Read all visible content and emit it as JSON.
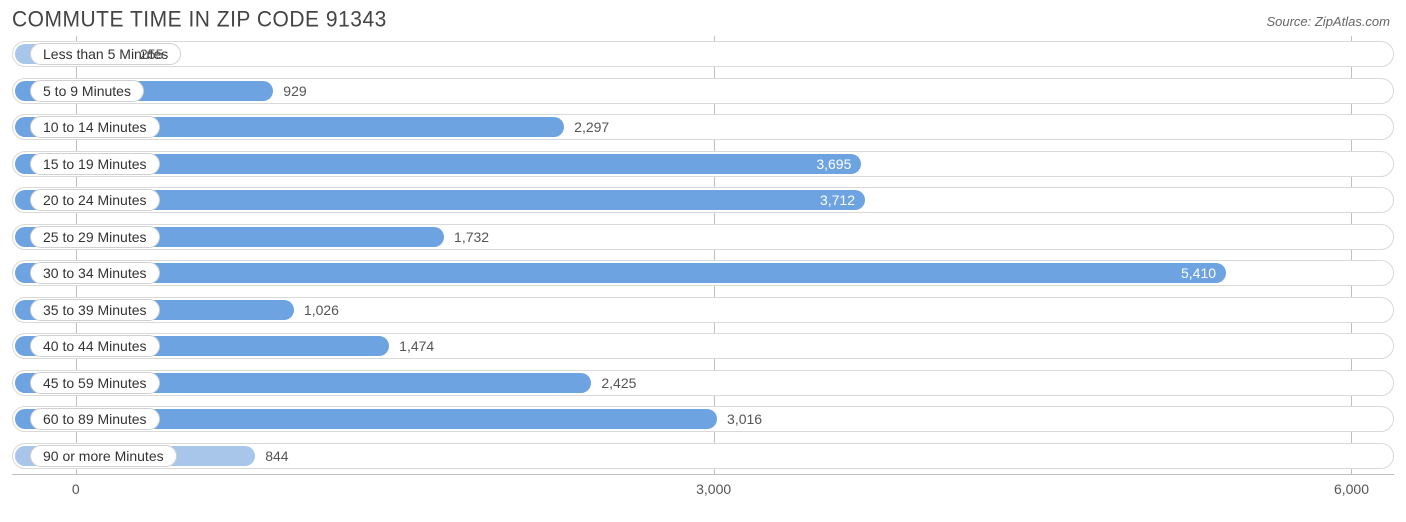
{
  "header": {
    "title": "COMMUTE TIME IN ZIP CODE 91343",
    "source_prefix": "Source: ",
    "source_name": "ZipAtlas.com"
  },
  "chart": {
    "type": "bar-horizontal",
    "background_color": "#ffffff",
    "track_border_color": "#d9d9d9",
    "grid_color": "#bfbfbf",
    "title_color": "#444444",
    "text_color": "#333333",
    "tick_color": "#555555",
    "bar_color_main": "#6da3e0",
    "bar_color_alt": "#a8c6ea",
    "value_label_inside_color": "#ffffff",
    "value_label_outside_color": "#555555",
    "x_min": -300,
    "x_max": 6200,
    "x_ticks": [
      0,
      3000,
      6000
    ],
    "x_tick_labels": [
      "0",
      "3,000",
      "6,000"
    ],
    "value_inside_threshold": 3600,
    "label_fontsize": 14,
    "title_fontsize": 21,
    "series": [
      {
        "category": "Less than 5 Minutes",
        "value": 255,
        "display": "255",
        "fill": "alt"
      },
      {
        "category": "5 to 9 Minutes",
        "value": 929,
        "display": "929",
        "fill": "main"
      },
      {
        "category": "10 to 14 Minutes",
        "value": 2297,
        "display": "2,297",
        "fill": "main"
      },
      {
        "category": "15 to 19 Minutes",
        "value": 3695,
        "display": "3,695",
        "fill": "main"
      },
      {
        "category": "20 to 24 Minutes",
        "value": 3712,
        "display": "3,712",
        "fill": "main"
      },
      {
        "category": "25 to 29 Minutes",
        "value": 1732,
        "display": "1,732",
        "fill": "main"
      },
      {
        "category": "30 to 34 Minutes",
        "value": 5410,
        "display": "5,410",
        "fill": "main"
      },
      {
        "category": "35 to 39 Minutes",
        "value": 1026,
        "display": "1,026",
        "fill": "main"
      },
      {
        "category": "40 to 44 Minutes",
        "value": 1474,
        "display": "1,474",
        "fill": "main"
      },
      {
        "category": "45 to 59 Minutes",
        "value": 2425,
        "display": "2,425",
        "fill": "main"
      },
      {
        "category": "60 to 89 Minutes",
        "value": 3016,
        "display": "3,016",
        "fill": "main"
      },
      {
        "category": "90 or more Minutes",
        "value": 844,
        "display": "844",
        "fill": "alt"
      }
    ]
  }
}
